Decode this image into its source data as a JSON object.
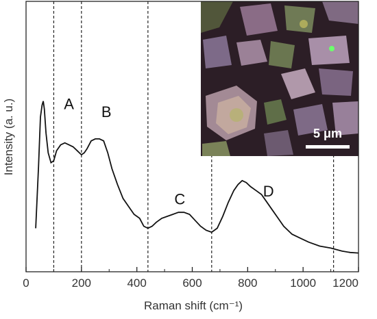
{
  "chart_data": {
    "type": "line",
    "title": "",
    "xlabel": "Raman shift (cm⁻¹)",
    "ylabel": "Intensity (a. u.)",
    "xlim": [
      0,
      1200
    ],
    "xticks": [
      "0",
      "200",
      "400",
      "600",
      "800",
      "1000",
      "1200"
    ],
    "xtick_values": [
      0,
      200,
      400,
      600,
      800,
      1000,
      1200
    ],
    "y_ticks_labeled": false,
    "grid": false,
    "dashed_lines_x": [
      100,
      200,
      440,
      670,
      1110
    ],
    "peak_labels": [
      {
        "text": "A",
        "x": 155,
        "y": 0.74
      },
      {
        "text": "B",
        "x": 290,
        "y": 0.7
      },
      {
        "text": "C",
        "x": 555,
        "y": 0.26
      },
      {
        "text": "D",
        "x": 875,
        "y": 0.3
      }
    ],
    "series": [
      {
        "x": [
          35,
          45,
          52,
          58,
          62,
          66,
          72,
          80,
          90,
          100,
          110,
          125,
          140,
          155,
          170,
          185,
          200,
          210,
          220,
          235,
          250,
          265,
          280,
          295,
          310,
          330,
          350,
          370,
          390,
          410,
          425,
          440,
          455,
          470,
          490,
          510,
          530,
          550,
          570,
          590,
          610,
          630,
          650,
          670,
          690,
          710,
          730,
          750,
          765,
          780,
          795,
          810,
          830,
          850,
          870,
          890,
          910,
          930,
          960,
          990,
          1020,
          1060,
          1100,
          1140,
          1170,
          1200
        ],
        "y": [
          0.14,
          0.45,
          0.7,
          0.76,
          0.78,
          0.74,
          0.62,
          0.52,
          0.47,
          0.48,
          0.53,
          0.56,
          0.57,
          0.56,
          0.55,
          0.53,
          0.51,
          0.52,
          0.54,
          0.58,
          0.59,
          0.59,
          0.58,
          0.52,
          0.44,
          0.36,
          0.29,
          0.25,
          0.21,
          0.19,
          0.15,
          0.14,
          0.15,
          0.17,
          0.19,
          0.2,
          0.21,
          0.22,
          0.22,
          0.21,
          0.18,
          0.15,
          0.13,
          0.12,
          0.14,
          0.2,
          0.27,
          0.33,
          0.36,
          0.38,
          0.37,
          0.35,
          0.33,
          0.31,
          0.27,
          0.23,
          0.19,
          0.15,
          0.11,
          0.09,
          0.07,
          0.05,
          0.04,
          0.025,
          0.018,
          0.015
        ]
      }
    ],
    "inset": {
      "type": "micrograph",
      "scale_bar_label": "5 μm"
    }
  }
}
